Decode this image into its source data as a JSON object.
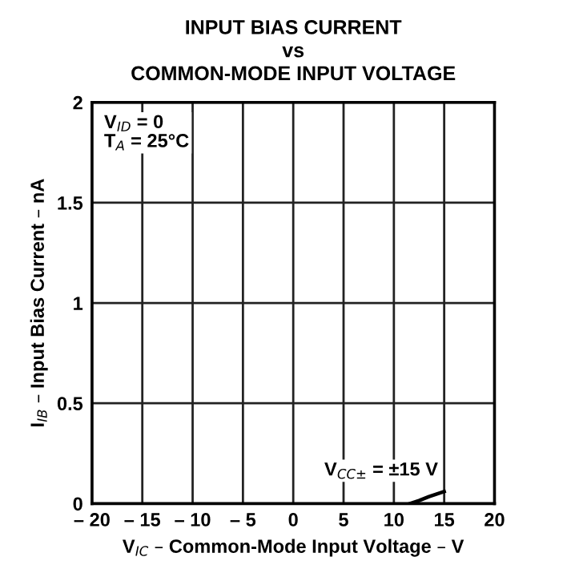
{
  "chart_data": {
    "type": "line",
    "title": "INPUT BIAS CURRENT\nvs\nCOMMON-MODE INPUT VOLTAGE",
    "xlabel": "V$_{IC}$ – Common-Mode Input Voltage – V",
    "ylabel": "I$_{IB}$ – Input Bias Current – nA",
    "series": [
      {
        "name": "V$_{CC±}$ = ±15 V",
        "color": "#000000",
        "x": [
          11.6,
          12.5,
          13.5,
          15
        ],
        "values": [
          0,
          0.015,
          0.035,
          0.06
        ]
      }
    ],
    "annotations": [
      "V$_{ID}$ = 0\nT$_{A}$ = 25°C"
    ],
    "xlim": [
      -20,
      20
    ],
    "xticks": [
      {
        "value": -20,
        "label": "– 20"
      },
      {
        "value": -15,
        "label": "– 15"
      },
      {
        "value": -10,
        "label": "– 10"
      },
      {
        "value": -5,
        "label": "– 5"
      },
      0,
      5,
      10,
      15,
      20
    ],
    "ylim": [
      0,
      2
    ],
    "yticks": [
      0,
      0.5,
      1,
      1.5,
      2
    ],
    "grid": true,
    "marker": "none",
    "line_style": "solid"
  }
}
